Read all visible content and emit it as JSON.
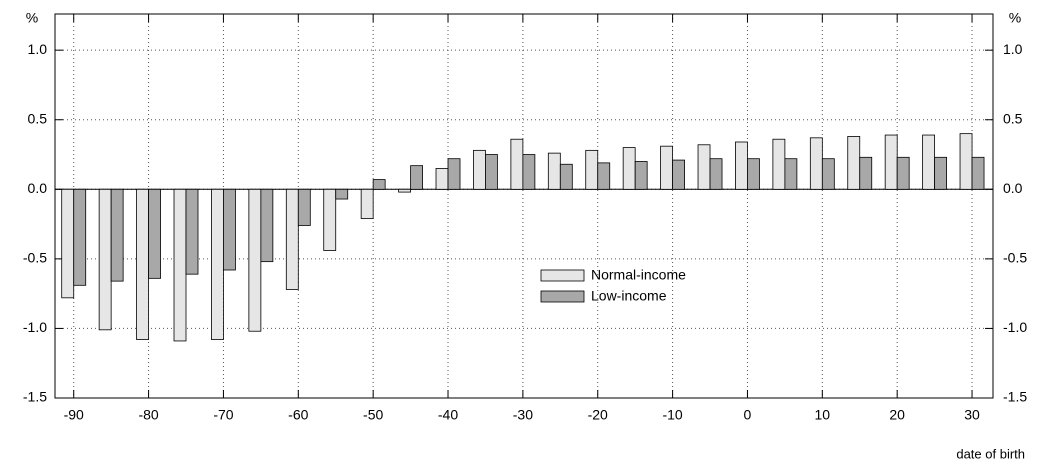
{
  "chart_data": {
    "type": "bar",
    "x_label": "date of birth",
    "y_unit": "%",
    "x": [
      -90,
      -85,
      -80,
      -75,
      -70,
      -65,
      -60,
      -55,
      -50,
      -45,
      -40,
      -35,
      -30,
      -25,
      -20,
      -15,
      -10,
      -5,
      0,
      5,
      10,
      15,
      20,
      25,
      30
    ],
    "series": [
      {
        "name": "Normal-income",
        "color": "#e6e6e6",
        "values": [
          -0.78,
          -1.01,
          -1.08,
          -1.09,
          -1.08,
          -1.02,
          -0.72,
          -0.44,
          -0.21,
          -0.02,
          0.15,
          0.28,
          0.36,
          0.26,
          0.28,
          0.3,
          0.31,
          0.32,
          0.34,
          0.36,
          0.37,
          0.38,
          0.39,
          0.39,
          0.4
        ]
      },
      {
        "name": "Low-income",
        "color": "#a8a8a8",
        "values": [
          -0.69,
          -0.66,
          -0.64,
          -0.61,
          -0.58,
          -0.52,
          -0.26,
          -0.07,
          0.07,
          0.17,
          0.22,
          0.25,
          0.25,
          0.18,
          0.19,
          0.2,
          0.21,
          0.22,
          0.22,
          0.22,
          0.22,
          0.23,
          0.23,
          0.23,
          0.23
        ]
      }
    ],
    "xlim": [
      -92.5,
      32.8
    ],
    "xticks": [
      -90,
      -80,
      -70,
      -60,
      -50,
      -40,
      -30,
      -20,
      -10,
      0,
      10,
      20,
      30
    ],
    "ylim": [
      -1.5,
      1.26
    ],
    "yticks": [
      {
        "value": -1.5,
        "label": "-1.5"
      },
      {
        "value": -1,
        "label": "-1.0"
      },
      {
        "value": -0.5,
        "label": "-0.5"
      },
      {
        "value": 0,
        "label": "0.0"
      },
      {
        "value": 0.5,
        "label": "0.5"
      },
      {
        "value": 1,
        "label": "1.0"
      }
    ],
    "grid": true
  }
}
